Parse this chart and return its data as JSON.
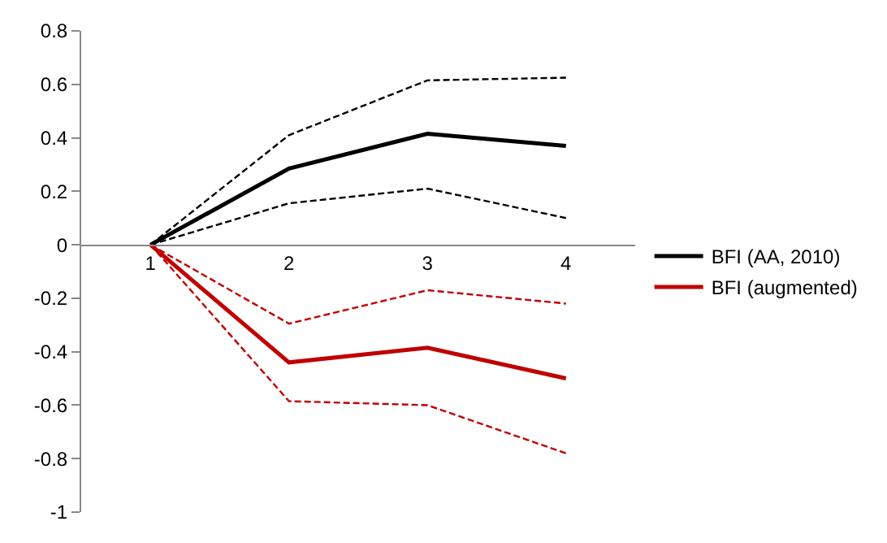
{
  "chart_data": {
    "type": "line",
    "categories": [
      "1",
      "2",
      "3",
      "4"
    ],
    "series": [
      {
        "color": "#000000",
        "values": [
          0,
          0.41,
          0.615,
          0.625
        ],
        "line_style": "dashed"
      },
      {
        "color": "#000000",
        "values": [
          0,
          0.155,
          0.21,
          0.1
        ],
        "line_style": "dashed"
      },
      {
        "color": "#c00000",
        "values": [
          0,
          -0.295,
          -0.17,
          -0.22
        ],
        "line_style": "dashed"
      },
      {
        "color": "#c00000",
        "values": [
          0,
          -0.585,
          -0.6,
          -0.78
        ],
        "line_style": "dashed"
      },
      {
        "name": "BFI (AA, 2010)",
        "color": "#000000",
        "values": [
          0,
          0.285,
          0.415,
          0.37
        ],
        "line_style": "solid"
      },
      {
        "name": "BFI (augmented)",
        "color": "#c00000",
        "values": [
          0,
          -0.44,
          -0.385,
          -0.5
        ],
        "line_style": "solid"
      }
    ],
    "ylim": [
      -1,
      0.8
    ],
    "yticks": [
      -1,
      -0.8,
      -0.6,
      -0.4,
      -0.2,
      0,
      0.2,
      0.4,
      0.6,
      0.8
    ],
    "legend": "right",
    "marker": "none"
  }
}
